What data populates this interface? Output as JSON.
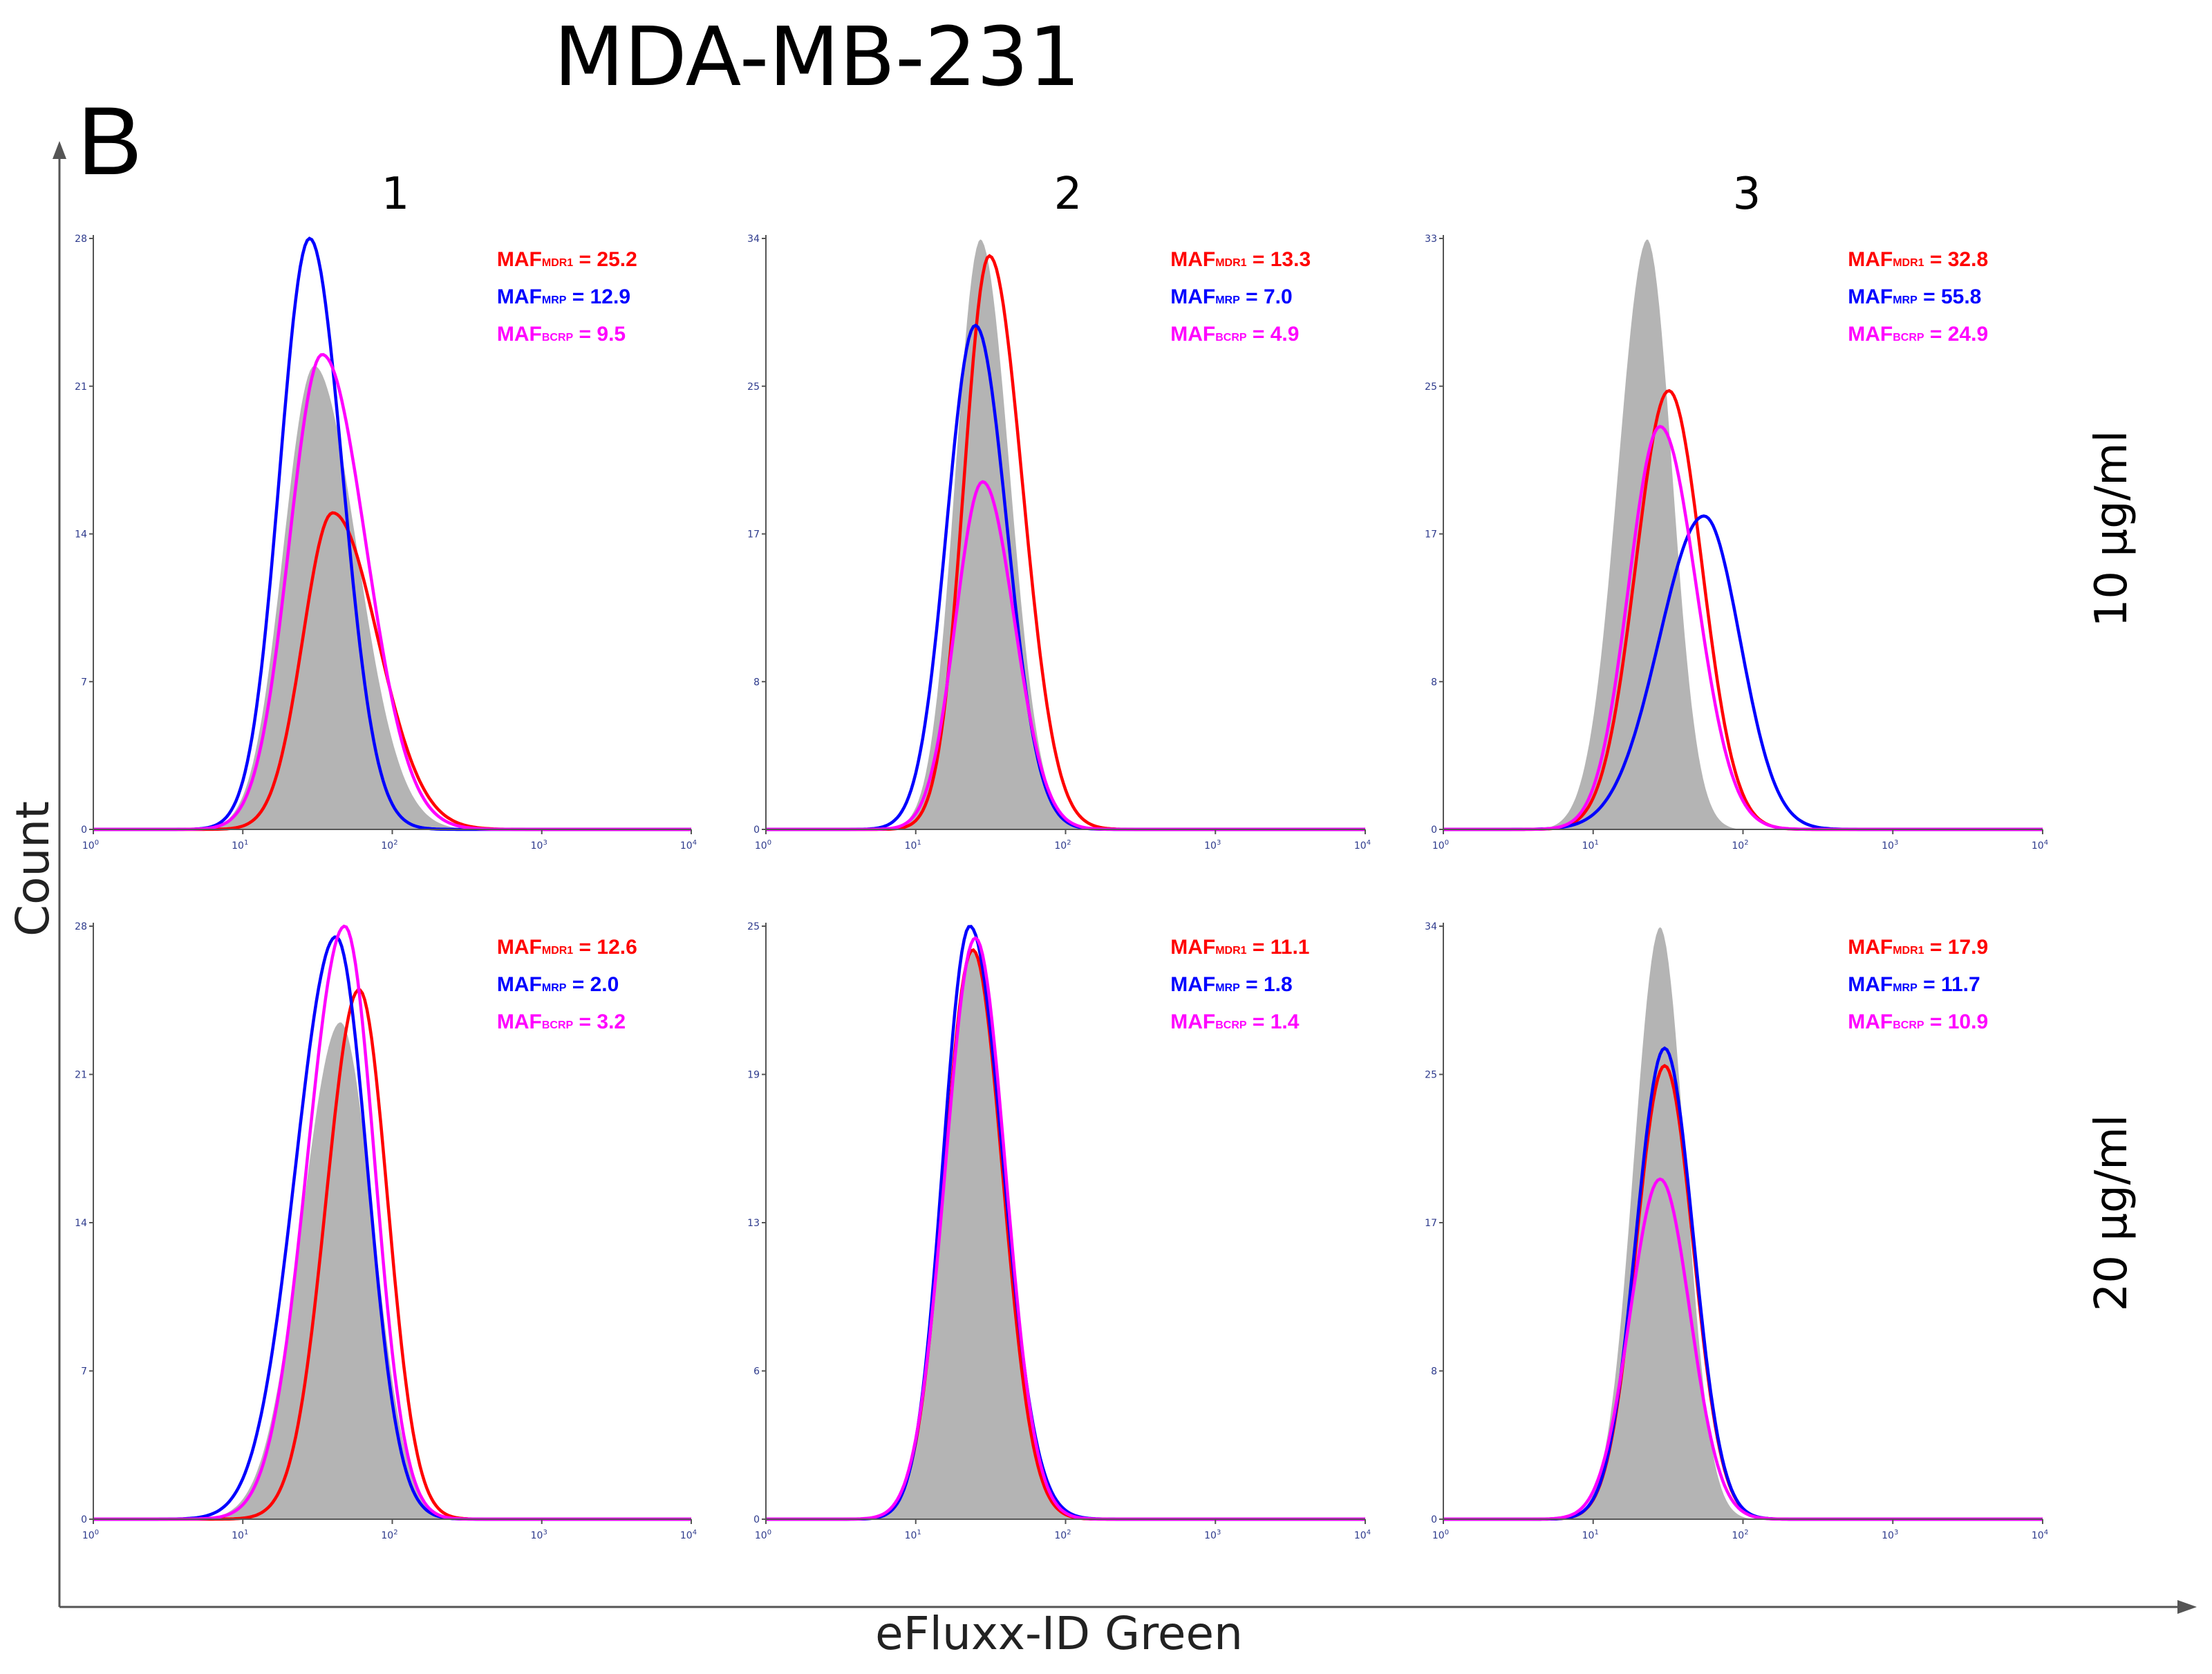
{
  "figure": {
    "title": "MDA-MB-231",
    "panel_letter": "B",
    "y_axis_title": "Count",
    "x_axis_title": "eFluxx-ID Green",
    "column_labels": [
      "1",
      "2",
      "3"
    ],
    "row_labels": [
      "10 μg/ml",
      "20 μg/ml"
    ]
  },
  "colors": {
    "reference_fill": "#b4b4b4",
    "MDR1": "#ff0000",
    "MRP": "#0000ff",
    "BCRP": "#ff00ff",
    "tick_text": "#2d3a8c",
    "axes": "#555555"
  },
  "chart_data": [
    {
      "type": "histogram-overlay",
      "column": "1",
      "row": "10 μg/ml",
      "xscale": "log",
      "xlim": [
        1,
        10000
      ],
      "x_ticks": [
        {
          "base": "10",
          "exp": "0"
        },
        {
          "base": "10",
          "exp": "1"
        },
        {
          "base": "10",
          "exp": "2"
        },
        {
          "base": "10",
          "exp": "3"
        },
        {
          "base": "10",
          "exp": "4"
        }
      ],
      "y_ticks": [
        "0",
        "7",
        "14",
        "21",
        "28"
      ],
      "ylim": [
        0,
        28
      ],
      "series": [
        {
          "name": "Control",
          "kind": "fill",
          "peak_x": 30,
          "peak_y": 22.0,
          "sigma_left": 0.21,
          "sigma_right": 0.29
        },
        {
          "name": "MDR1",
          "kind": "line",
          "peak_x": 40,
          "peak_y": 15.0,
          "sigma_left": 0.2,
          "sigma_right": 0.3
        },
        {
          "name": "MRP",
          "kind": "line",
          "peak_x": 28,
          "peak_y": 28.0,
          "sigma_left": 0.2,
          "sigma_right": 0.22
        },
        {
          "name": "BCRP",
          "kind": "line",
          "peak_x": 34,
          "peak_y": 22.5,
          "sigma_left": 0.22,
          "sigma_right": 0.29
        }
      ],
      "annotations": [
        {
          "label": "MAF",
          "sub": "MDR1",
          "value": "= 25.2",
          "series": "MDR1"
        },
        {
          "label": "MAF",
          "sub": "MRP",
          "value": "= 12.9",
          "series": "MRP"
        },
        {
          "label": "MAF",
          "sub": "BCRP",
          "value": "= 9.5",
          "series": "BCRP"
        }
      ]
    },
    {
      "type": "histogram-overlay",
      "column": "2",
      "row": "10 μg/ml",
      "xscale": "log",
      "xlim": [
        1,
        10000
      ],
      "x_ticks": [
        {
          "base": "10",
          "exp": "0"
        },
        {
          "base": "10",
          "exp": "1"
        },
        {
          "base": "10",
          "exp": "2"
        },
        {
          "base": "10",
          "exp": "3"
        },
        {
          "base": "10",
          "exp": "4"
        }
      ],
      "y_ticks": [
        "0",
        "8",
        "17",
        "25",
        "34"
      ],
      "ylim": [
        0,
        34
      ],
      "series": [
        {
          "name": "Control",
          "kind": "fill",
          "peak_x": 27,
          "peak_y": 34.0,
          "sigma_left": 0.17,
          "sigma_right": 0.2
        },
        {
          "name": "MDR1",
          "kind": "line",
          "peak_x": 31,
          "peak_y": 33.0,
          "sigma_left": 0.17,
          "sigma_right": 0.22
        },
        {
          "name": "MRP",
          "kind": "line",
          "peak_x": 25,
          "peak_y": 29.0,
          "sigma_left": 0.19,
          "sigma_right": 0.21
        },
        {
          "name": "BCRP",
          "kind": "line",
          "peak_x": 28,
          "peak_y": 20.0,
          "sigma_left": 0.18,
          "sigma_right": 0.21
        }
      ],
      "annotations": [
        {
          "label": "MAF",
          "sub": "MDR1",
          "value": "= 13.3",
          "series": "MDR1"
        },
        {
          "label": "MAF",
          "sub": "MRP",
          "value": "= 7.0",
          "series": "MRP"
        },
        {
          "label": "MAF",
          "sub": "BCRP",
          "value": "= 4.9",
          "series": "BCRP"
        }
      ]
    },
    {
      "type": "histogram-overlay",
      "column": "3",
      "row": "10 μg/ml",
      "xscale": "log",
      "xlim": [
        1,
        10000
      ],
      "x_ticks": [
        {
          "base": "10",
          "exp": "0"
        },
        {
          "base": "10",
          "exp": "1"
        },
        {
          "base": "10",
          "exp": "2"
        },
        {
          "base": "10",
          "exp": "3"
        },
        {
          "base": "10",
          "exp": "4"
        }
      ],
      "y_ticks": [
        "0",
        "8",
        "17",
        "25",
        "33"
      ],
      "ylim": [
        0,
        33
      ],
      "series": [
        {
          "name": "Control",
          "kind": "fill",
          "peak_x": 23,
          "peak_y": 33.0,
          "sigma_left": 0.2,
          "sigma_right": 0.17
        },
        {
          "name": "MDR1",
          "kind": "line",
          "peak_x": 32,
          "peak_y": 24.5,
          "sigma_left": 0.22,
          "sigma_right": 0.22
        },
        {
          "name": "MRP",
          "kind": "line",
          "peak_x": 55,
          "peak_y": 17.5,
          "sigma_left": 0.3,
          "sigma_right": 0.24
        },
        {
          "name": "BCRP",
          "kind": "line",
          "peak_x": 28,
          "peak_y": 22.5,
          "sigma_left": 0.21,
          "sigma_right": 0.24
        }
      ],
      "annotations": [
        {
          "label": "MAF",
          "sub": "MDR1",
          "value": "= 32.8",
          "series": "MDR1"
        },
        {
          "label": "MAF",
          "sub": "MRP",
          "value": "= 55.8",
          "series": "MRP"
        },
        {
          "label": "MAF",
          "sub": "BCRP",
          "value": "= 24.9",
          "series": "BCRP"
        }
      ]
    },
    {
      "type": "histogram-overlay",
      "column": "1",
      "row": "20 μg/ml",
      "xscale": "log",
      "xlim": [
        1,
        10000
      ],
      "x_ticks": [
        {
          "base": "10",
          "exp": "0"
        },
        {
          "base": "10",
          "exp": "1"
        },
        {
          "base": "10",
          "exp": "2"
        },
        {
          "base": "10",
          "exp": "3"
        },
        {
          "base": "10",
          "exp": "4"
        }
      ],
      "y_ticks": [
        "0",
        "7",
        "14",
        "21",
        "28"
      ],
      "ylim": [
        0,
        28
      ],
      "series": [
        {
          "name": "Control",
          "kind": "fill",
          "peak_x": 45,
          "peak_y": 23.5,
          "sigma_left": 0.26,
          "sigma_right": 0.22
        },
        {
          "name": "MDR1",
          "kind": "line",
          "peak_x": 60,
          "peak_y": 25.0,
          "sigma_left": 0.22,
          "sigma_right": 0.19
        },
        {
          "name": "MRP",
          "kind": "line",
          "peak_x": 42,
          "peak_y": 27.5,
          "sigma_left": 0.27,
          "sigma_right": 0.21
        },
        {
          "name": "BCRP",
          "kind": "line",
          "peak_x": 48,
          "peak_y": 28.0,
          "sigma_left": 0.25,
          "sigma_right": 0.2
        }
      ],
      "annotations": [
        {
          "label": "MAF",
          "sub": "MDR1",
          "value": "= 12.6",
          "series": "MDR1"
        },
        {
          "label": "MAF",
          "sub": "MRP",
          "value": "= 2.0",
          "series": "MRP"
        },
        {
          "label": "MAF",
          "sub": "BCRP",
          "value": "= 3.2",
          "series": "BCRP"
        }
      ]
    },
    {
      "type": "histogram-overlay",
      "column": "2",
      "row": "20 μg/ml",
      "xscale": "log",
      "xlim": [
        1,
        10000
      ],
      "x_ticks": [
        {
          "base": "10",
          "exp": "0"
        },
        {
          "base": "10",
          "exp": "1"
        },
        {
          "base": "10",
          "exp": "2"
        },
        {
          "base": "10",
          "exp": "3"
        },
        {
          "base": "10",
          "exp": "4"
        }
      ],
      "y_ticks": [
        "0",
        "6",
        "13",
        "19",
        "25"
      ],
      "ylim": [
        0,
        25
      ],
      "series": [
        {
          "name": "Control",
          "kind": "fill",
          "peak_x": 24,
          "peak_y": 24.0,
          "sigma_left": 0.19,
          "sigma_right": 0.2
        },
        {
          "name": "MDR1",
          "kind": "line",
          "peak_x": 24,
          "peak_y": 24.0,
          "sigma_left": 0.19,
          "sigma_right": 0.2
        },
        {
          "name": "MRP",
          "kind": "line",
          "peak_x": 23,
          "peak_y": 25.0,
          "sigma_left": 0.18,
          "sigma_right": 0.22
        },
        {
          "name": "BCRP",
          "kind": "line",
          "peak_x": 25,
          "peak_y": 24.5,
          "sigma_left": 0.2,
          "sigma_right": 0.2
        }
      ],
      "annotations": [
        {
          "label": "MAF",
          "sub": "MDR1",
          "value": "= 11.1",
          "series": "MDR1"
        },
        {
          "label": "MAF",
          "sub": "MRP",
          "value": "= 1.8",
          "series": "MRP"
        },
        {
          "label": "MAF",
          "sub": "BCRP",
          "value": "= 1.4",
          "series": "BCRP"
        }
      ]
    },
    {
      "type": "histogram-overlay",
      "column": "3",
      "row": "20 μg/ml",
      "xscale": "log",
      "xlim": [
        1,
        10000
      ],
      "x_ticks": [
        {
          "base": "10",
          "exp": "0"
        },
        {
          "base": "10",
          "exp": "1"
        },
        {
          "base": "10",
          "exp": "2"
        },
        {
          "base": "10",
          "exp": "3"
        },
        {
          "base": "10",
          "exp": "4"
        }
      ],
      "y_ticks": [
        "0",
        "8",
        "17",
        "25",
        "34"
      ],
      "ylim": [
        0,
        34
      ],
      "series": [
        {
          "name": "Control",
          "kind": "fill",
          "peak_x": 28,
          "peak_y": 34.0,
          "sigma_left": 0.18,
          "sigma_right": 0.17
        },
        {
          "name": "MDR1",
          "kind": "line",
          "peak_x": 30,
          "peak_y": 26.0,
          "sigma_left": 0.19,
          "sigma_right": 0.19
        },
        {
          "name": "MRP",
          "kind": "line",
          "peak_x": 30,
          "peak_y": 27.0,
          "sigma_left": 0.19,
          "sigma_right": 0.19
        },
        {
          "name": "BCRP",
          "kind": "line",
          "peak_x": 28,
          "peak_y": 19.5,
          "sigma_left": 0.2,
          "sigma_right": 0.2
        }
      ],
      "annotations": [
        {
          "label": "MAF",
          "sub": "MDR1",
          "value": "= 17.9",
          "series": "MDR1"
        },
        {
          "label": "MAF",
          "sub": "MRP",
          "value": "= 11.7",
          "series": "MRP"
        },
        {
          "label": "MAF",
          "sub": "BCRP",
          "value": "= 10.9",
          "series": "BCRP"
        }
      ]
    }
  ]
}
